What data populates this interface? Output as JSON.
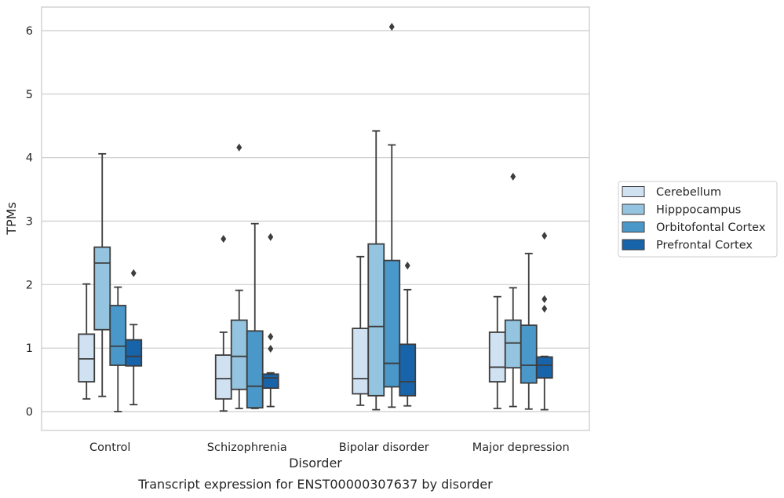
{
  "chart_data": {
    "type": "box",
    "caption": "Transcript expression for ENST00000307637 by disorder",
    "xlabel": "Disorder",
    "ylabel": "TPMs",
    "ylim": [
      -0.3,
      6.38
    ],
    "yticks": [
      "0",
      "1",
      "2",
      "3",
      "4",
      "5",
      "6"
    ],
    "grid": "horizontal",
    "legend_position": "right",
    "categories": [
      "Control",
      "Schizophrenia",
      "Bipolar disorder",
      "Major depression"
    ],
    "series": [
      {
        "name": "Cerebellum",
        "color": "#d0e1f2",
        "boxes": [
          {
            "whislo": 0.2,
            "q1": 0.47,
            "med": 0.83,
            "q3": 1.22,
            "whishi": 2.01,
            "fliers": []
          },
          {
            "whislo": 0.01,
            "q1": 0.2,
            "med": 0.52,
            "q3": 0.89,
            "whishi": 1.25,
            "fliers": [
              2.72
            ]
          },
          {
            "whislo": 0.1,
            "q1": 0.28,
            "med": 0.52,
            "q3": 1.31,
            "whishi": 2.44,
            "fliers": []
          },
          {
            "whislo": 0.05,
            "q1": 0.47,
            "med": 0.7,
            "q3": 1.25,
            "whishi": 1.81,
            "fliers": []
          }
        ]
      },
      {
        "name": "Hipppocampus",
        "color": "#94c4df",
        "boxes": [
          {
            "whislo": 0.24,
            "q1": 1.29,
            "med": 2.34,
            "q3": 2.59,
            "whishi": 4.06,
            "fliers": []
          },
          {
            "whislo": 0.05,
            "q1": 0.35,
            "med": 0.87,
            "q3": 1.44,
            "whishi": 1.91,
            "fliers": [
              4.16
            ]
          },
          {
            "whislo": 0.03,
            "q1": 0.25,
            "med": 1.34,
            "q3": 2.64,
            "whishi": 4.42,
            "fliers": []
          },
          {
            "whislo": 0.08,
            "q1": 0.69,
            "med": 1.08,
            "q3": 1.44,
            "whishi": 1.95,
            "fliers": [
              3.7
            ]
          }
        ]
      },
      {
        "name": "Orbitofontal Cortex",
        "color": "#4a98c9",
        "boxes": [
          {
            "whislo": 0.0,
            "q1": 0.73,
            "med": 1.03,
            "q3": 1.67,
            "whishi": 1.96,
            "fliers": []
          },
          {
            "whislo": 0.05,
            "q1": 0.06,
            "med": 0.4,
            "q3": 1.27,
            "whishi": 2.96,
            "fliers": []
          },
          {
            "whislo": 0.07,
            "q1": 0.39,
            "med": 0.76,
            "q3": 2.38,
            "whishi": 4.2,
            "fliers": [
              6.06
            ]
          },
          {
            "whislo": 0.04,
            "q1": 0.45,
            "med": 0.73,
            "q3": 1.36,
            "whishi": 2.49,
            "fliers": []
          }
        ]
      },
      {
        "name": "Prefrontal Cortex",
        "color": "#1764ab",
        "boxes": [
          {
            "whislo": 0.11,
            "q1": 0.72,
            "med": 0.87,
            "q3": 1.13,
            "whishi": 1.37,
            "fliers": [
              2.18
            ]
          },
          {
            "whislo": 0.08,
            "q1": 0.37,
            "med": 0.53,
            "q3": 0.59,
            "whishi": 0.61,
            "fliers": [
              2.75,
              1.18,
              0.99
            ]
          },
          {
            "whislo": 0.09,
            "q1": 0.25,
            "med": 0.47,
            "q3": 1.06,
            "whishi": 1.92,
            "fliers": [
              2.3
            ]
          },
          {
            "whislo": 0.03,
            "q1": 0.53,
            "med": 0.73,
            "q3": 0.86,
            "whishi": 0.87,
            "fliers": [
              2.77,
              1.77,
              1.62
            ]
          }
        ]
      }
    ]
  }
}
